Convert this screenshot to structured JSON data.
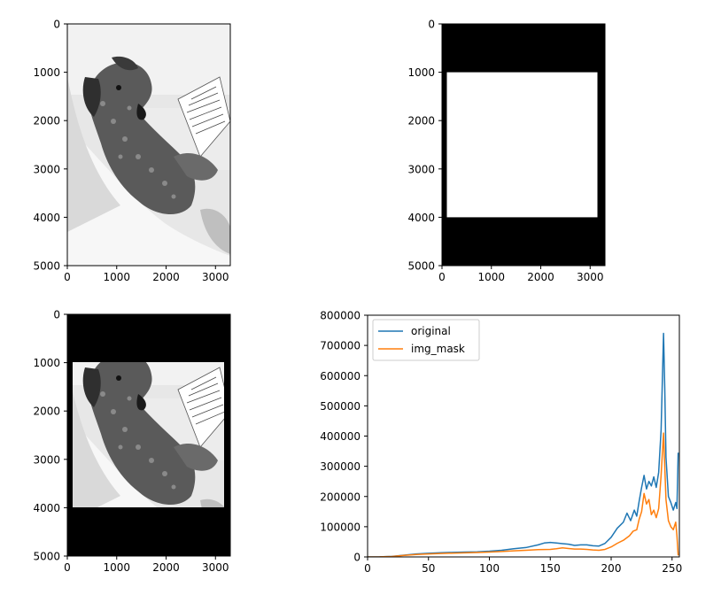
{
  "chart_data": [
    {
      "type": "image",
      "image_content": "grayscale photo of a dog reading a book",
      "xlim": [
        0,
        3300
      ],
      "ylim": [
        5000,
        0
      ],
      "xticks": [
        "0",
        "1000",
        "2000",
        "3000"
      ],
      "yticks": [
        "0",
        "1000",
        "2000",
        "3000",
        "4000",
        "5000"
      ]
    },
    {
      "type": "image",
      "image_content": "binary mask: black background, white rectangle",
      "mask_rect": {
        "x": [
          100,
          3200
        ],
        "y": [
          1000,
          4000
        ]
      },
      "xlim": [
        0,
        3300
      ],
      "ylim": [
        5000,
        0
      ],
      "xticks": [
        "0",
        "1000",
        "2000",
        "3000"
      ],
      "yticks": [
        "0",
        "1000",
        "2000",
        "3000",
        "4000",
        "5000"
      ]
    },
    {
      "type": "image",
      "image_content": "masked grayscale photo of the dog",
      "mask_rect": {
        "x": [
          100,
          3200
        ],
        "y": [
          1000,
          4000
        ]
      },
      "xlim": [
        0,
        3300
      ],
      "ylim": [
        5000,
        0
      ],
      "xticks": [
        "0",
        "1000",
        "2000",
        "3000"
      ],
      "yticks": [
        "0",
        "1000",
        "2000",
        "3000",
        "4000",
        "5000"
      ]
    },
    {
      "type": "line",
      "xlim": [
        0,
        256
      ],
      "ylim": [
        0,
        800000
      ],
      "xticks": [
        "0",
        "50",
        "100",
        "150",
        "200",
        "250"
      ],
      "yticks": [
        "0",
        "100000",
        "200000",
        "300000",
        "400000",
        "500000",
        "600000",
        "700000",
        "800000"
      ],
      "legend": "top-left",
      "series": [
        {
          "name": "original",
          "color": "#1f77b4",
          "points": [
            [
              0,
              0
            ],
            [
              10,
              500
            ],
            [
              20,
              2000
            ],
            [
              30,
              6000
            ],
            [
              40,
              10000
            ],
            [
              50,
              12000
            ],
            [
              60,
              14000
            ],
            [
              70,
              15000
            ],
            [
              80,
              16000
            ],
            [
              90,
              17000
            ],
            [
              100,
              19000
            ],
            [
              110,
              22000
            ],
            [
              120,
              27000
            ],
            [
              130,
              31000
            ],
            [
              140,
              40000
            ],
            [
              145,
              46000
            ],
            [
              150,
              48000
            ],
            [
              155,
              46000
            ],
            [
              160,
              44000
            ],
            [
              165,
              42000
            ],
            [
              170,
              38000
            ],
            [
              175,
              40000
            ],
            [
              180,
              40000
            ],
            [
              185,
              37000
            ],
            [
              190,
              36000
            ],
            [
              195,
              45000
            ],
            [
              200,
              65000
            ],
            [
              205,
              95000
            ],
            [
              210,
              115000
            ],
            [
              213,
              145000
            ],
            [
              216,
              120000
            ],
            [
              219,
              155000
            ],
            [
              221,
              135000
            ],
            [
              223,
              185000
            ],
            [
              225,
              230000
            ],
            [
              227,
              270000
            ],
            [
              229,
              225000
            ],
            [
              231,
              250000
            ],
            [
              233,
              235000
            ],
            [
              235,
              265000
            ],
            [
              237,
              230000
            ],
            [
              239,
              280000
            ],
            [
              241,
              420000
            ],
            [
              243,
              740000
            ],
            [
              244,
              560000
            ],
            [
              245,
              330000
            ],
            [
              247,
              200000
            ],
            [
              249,
              180000
            ],
            [
              251,
              155000
            ],
            [
              253,
              180000
            ],
            [
              254,
              160000
            ],
            [
              255,
              345000
            ]
          ]
        },
        {
          "name": "img_mask",
          "color": "#ff7f0e",
          "points": [
            [
              0,
              0
            ],
            [
              10,
              300
            ],
            [
              20,
              1500
            ],
            [
              30,
              5000
            ],
            [
              40,
              8000
            ],
            [
              50,
              10000
            ],
            [
              60,
              11500
            ],
            [
              70,
              12500
            ],
            [
              80,
              13500
            ],
            [
              90,
              14500
            ],
            [
              100,
              16000
            ],
            [
              110,
              18000
            ],
            [
              120,
              20000
            ],
            [
              130,
              22000
            ],
            [
              140,
              24000
            ],
            [
              150,
              25000
            ],
            [
              155,
              27000
            ],
            [
              160,
              30000
            ],
            [
              165,
              28000
            ],
            [
              170,
              26000
            ],
            [
              175,
              26000
            ],
            [
              180,
              25000
            ],
            [
              185,
              23000
            ],
            [
              190,
              22000
            ],
            [
              195,
              25000
            ],
            [
              200,
              33000
            ],
            [
              205,
              45000
            ],
            [
              210,
              55000
            ],
            [
              215,
              70000
            ],
            [
              218,
              85000
            ],
            [
              221,
              90000
            ],
            [
              223,
              125000
            ],
            [
              225,
              150000
            ],
            [
              227,
              210000
            ],
            [
              229,
              175000
            ],
            [
              231,
              190000
            ],
            [
              233,
              140000
            ],
            [
              235,
              155000
            ],
            [
              237,
              130000
            ],
            [
              239,
              160000
            ],
            [
              241,
              270000
            ],
            [
              243,
              410000
            ],
            [
              244,
              300000
            ],
            [
              245,
              190000
            ],
            [
              247,
              120000
            ],
            [
              249,
              100000
            ],
            [
              251,
              90000
            ],
            [
              253,
              115000
            ],
            [
              254,
              70000
            ],
            [
              255,
              5000
            ]
          ]
        }
      ]
    }
  ]
}
